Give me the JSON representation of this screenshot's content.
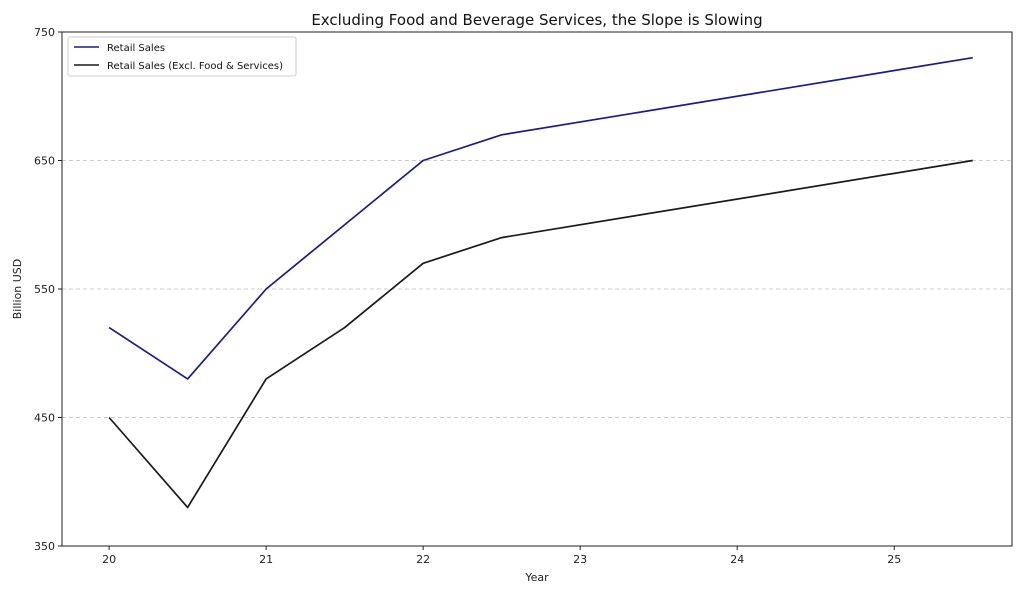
{
  "chart_data": {
    "type": "line",
    "title": "Excluding Food and Beverage Services, the Slope is Slowing",
    "xlabel": "Year",
    "ylabel": "Billion USD",
    "x": [
      20,
      20.5,
      21,
      21.5,
      22,
      22.5,
      25.5
    ],
    "xlim": [
      19.7,
      25.75
    ],
    "ylim": [
      350,
      750
    ],
    "xticks": [
      20,
      21,
      22,
      23,
      24,
      25
    ],
    "yticks": [
      350,
      450,
      550,
      650,
      750
    ],
    "grid": "horizontal dashed",
    "legend_position": "top-left",
    "series": [
      {
        "name": "Retail Sales",
        "color": "#1a1a8c",
        "values": [
          520,
          480,
          550,
          600,
          650,
          670,
          730
        ]
      },
      {
        "name": "Retail Sales (Excl. Food & Services)",
        "color": "#1a1a1a",
        "values": [
          450,
          380,
          480,
          520,
          570,
          590,
          650
        ]
      }
    ]
  }
}
